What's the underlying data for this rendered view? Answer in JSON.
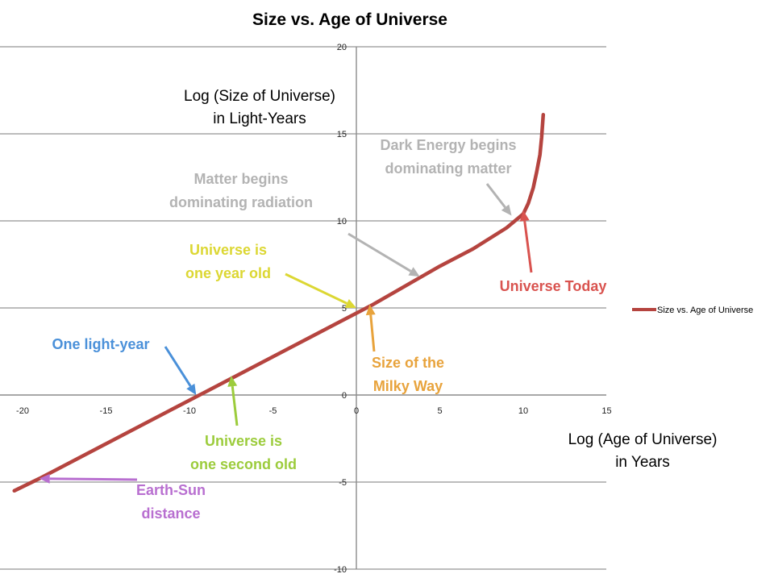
{
  "chart_data": {
    "type": "line",
    "title": "Size vs. Age of Universe",
    "xlabel": [
      "Log (Age of Universe)",
      "in Years"
    ],
    "ylabel": [
      "Log (Size of Universe)",
      "in Light-Years"
    ],
    "xlim": [
      -20,
      15
    ],
    "ylim": [
      -10,
      20
    ],
    "x_ticks": [
      -20,
      -15,
      -10,
      -5,
      0,
      5,
      10,
      15
    ],
    "y_ticks": [
      -10,
      -5,
      0,
      5,
      10,
      15,
      20
    ],
    "grid": "horizontal",
    "legend_position": "right",
    "series": [
      {
        "name": "Size vs. Age of Universe",
        "color": "#b5443f",
        "x": [
          -20.5,
          -19,
          -17,
          -15,
          -13,
          -11,
          -9,
          -7,
          -5,
          -3,
          -1,
          0,
          1,
          3,
          5,
          7,
          9,
          10,
          10.3,
          10.6,
          10.8,
          11.0,
          11.1,
          11.2
        ],
        "y": [
          -5.5,
          -4.8,
          -3.8,
          -2.8,
          -1.8,
          -0.8,
          0.2,
          1.2,
          2.2,
          3.2,
          4.2,
          4.7,
          5.2,
          6.3,
          7.4,
          8.4,
          9.6,
          10.4,
          11.0,
          11.9,
          12.8,
          13.8,
          14.8,
          16.1
        ]
      }
    ],
    "annotations": [
      {
        "id": "dark-energy",
        "lines": [
          "Dark Energy begins",
          "dominating matter"
        ],
        "color": "#b3b3b3",
        "target": [
          9.3,
          10.3
        ]
      },
      {
        "id": "matter-radiation",
        "lines": [
          "Matter begins",
          "dominating radiation"
        ],
        "color": "#b3b3b3",
        "target": [
          3.8,
          6.8
        ]
      },
      {
        "id": "one-year",
        "lines": [
          "Universe is",
          "one year old"
        ],
        "color": "#dcd733",
        "target": [
          0,
          5.0
        ]
      },
      {
        "id": "universe-today",
        "lines": [
          "Universe Today"
        ],
        "color": "#d9534f",
        "target": [
          10.0,
          10.6
        ]
      },
      {
        "id": "milky-way",
        "lines": [
          "Size of the",
          "Milky Way"
        ],
        "color": "#e8a33c",
        "target": [
          0.8,
          5.2
        ]
      },
      {
        "id": "light-year",
        "lines": [
          "One light-year"
        ],
        "color": "#4a90d9",
        "target": [
          -9.6,
          0
        ]
      },
      {
        "id": "one-second",
        "lines": [
          "Universe is",
          "one second old"
        ],
        "color": "#9ccc3c",
        "target": [
          -7.5,
          1.1
        ]
      },
      {
        "id": "earth-sun",
        "lines": [
          "Earth-Sun",
          "distance"
        ],
        "color": "#b86fd0",
        "target": [
          -19.0,
          -4.8
        ]
      }
    ]
  }
}
